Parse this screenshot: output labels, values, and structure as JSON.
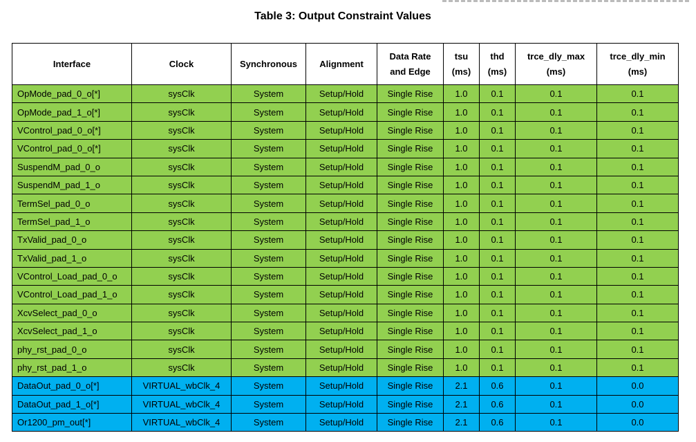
{
  "title": "Table 3: Output Constraint Values",
  "headers": [
    [
      "Interface"
    ],
    [
      "Clock"
    ],
    [
      "Synchronous"
    ],
    [
      "Alignment"
    ],
    [
      "Data Rate",
      "and Edge"
    ],
    [
      "tsu",
      "(ms)"
    ],
    [
      "thd",
      "(ms)"
    ],
    [
      "trce_dly_max",
      "(ms)"
    ],
    [
      "trce_dly_min",
      "(ms)"
    ]
  ],
  "colors": {
    "green_rows": "#92d050",
    "blue_rows": "#00b0f0"
  },
  "rows": [
    {
      "style": "green",
      "cells": [
        "OpMode_pad_0_o[*]",
        "sysClk",
        "System",
        "Setup/Hold",
        "Single Rise",
        "1.0",
        "0.1",
        "0.1",
        "0.1"
      ]
    },
    {
      "style": "green",
      "cells": [
        "OpMode_pad_1_o[*]",
        "sysClk",
        "System",
        "Setup/Hold",
        "Single Rise",
        "1.0",
        "0.1",
        "0.1",
        "0.1"
      ]
    },
    {
      "style": "green",
      "cells": [
        "VControl_pad_0_o[*]",
        "sysClk",
        "System",
        "Setup/Hold",
        "Single Rise",
        "1.0",
        "0.1",
        "0.1",
        "0.1"
      ]
    },
    {
      "style": "green",
      "cells": [
        "VControl_pad_0_o[*]",
        "sysClk",
        "System",
        "Setup/Hold",
        "Single Rise",
        "1.0",
        "0.1",
        "0.1",
        "0.1"
      ]
    },
    {
      "style": "green",
      "cells": [
        "SuspendM_pad_0_o",
        "sysClk",
        "System",
        "Setup/Hold",
        "Single Rise",
        "1.0",
        "0.1",
        "0.1",
        "0.1"
      ]
    },
    {
      "style": "green",
      "cells": [
        "SuspendM_pad_1_o",
        "sysClk",
        "System",
        "Setup/Hold",
        "Single Rise",
        "1.0",
        "0.1",
        "0.1",
        "0.1"
      ]
    },
    {
      "style": "green",
      "cells": [
        "TermSel_pad_0_o",
        "sysClk",
        "System",
        "Setup/Hold",
        "Single Rise",
        "1.0",
        "0.1",
        "0.1",
        "0.1"
      ]
    },
    {
      "style": "green",
      "cells": [
        "TermSel_pad_1_o",
        "sysClk",
        "System",
        "Setup/Hold",
        "Single Rise",
        "1.0",
        "0.1",
        "0.1",
        "0.1"
      ]
    },
    {
      "style": "green",
      "cells": [
        "TxValid_pad_0_o",
        "sysClk",
        "System",
        "Setup/Hold",
        "Single Rise",
        "1.0",
        "0.1",
        "0.1",
        "0.1"
      ]
    },
    {
      "style": "green",
      "cells": [
        "TxValid_pad_1_o",
        "sysClk",
        "System",
        "Setup/Hold",
        "Single Rise",
        "1.0",
        "0.1",
        "0.1",
        "0.1"
      ]
    },
    {
      "style": "green",
      "cells": [
        "VControl_Load_pad_0_o",
        "sysClk",
        "System",
        "Setup/Hold",
        "Single Rise",
        "1.0",
        "0.1",
        "0.1",
        "0.1"
      ]
    },
    {
      "style": "green",
      "cells": [
        "VControl_Load_pad_1_o",
        "sysClk",
        "System",
        "Setup/Hold",
        "Single Rise",
        "1.0",
        "0.1",
        "0.1",
        "0.1"
      ]
    },
    {
      "style": "green",
      "cells": [
        "XcvSelect_pad_0_o",
        "sysClk",
        "System",
        "Setup/Hold",
        "Single Rise",
        "1.0",
        "0.1",
        "0.1",
        "0.1"
      ]
    },
    {
      "style": "green",
      "cells": [
        "XcvSelect_pad_1_o",
        "sysClk",
        "System",
        "Setup/Hold",
        "Single Rise",
        "1.0",
        "0.1",
        "0.1",
        "0.1"
      ]
    },
    {
      "style": "green",
      "cells": [
        "phy_rst_pad_0_o",
        "sysClk",
        "System",
        "Setup/Hold",
        "Single Rise",
        "1.0",
        "0.1",
        "0.1",
        "0.1"
      ]
    },
    {
      "style": "green",
      "cells": [
        "phy_rst_pad_1_o",
        "sysClk",
        "System",
        "Setup/Hold",
        "Single Rise",
        "1.0",
        "0.1",
        "0.1",
        "0.1"
      ]
    },
    {
      "style": "blue",
      "cells": [
        "DataOut_pad_0_o[*]",
        "VIRTUAL_wbClk_4",
        "System",
        "Setup/Hold",
        "Single Rise",
        "2.1",
        "0.6",
        "0.1",
        "0.0"
      ]
    },
    {
      "style": "blue",
      "cells": [
        "DataOut_pad_1_o[*]",
        "VIRTUAL_wbClk_4",
        "System",
        "Setup/Hold",
        "Single Rise",
        "2.1",
        "0.6",
        "0.1",
        "0.0"
      ]
    },
    {
      "style": "blue",
      "cells": [
        "Or1200_pm_out[*]",
        "VIRTUAL_wbClk_4",
        "System",
        "Setup/Hold",
        "Single Rise",
        "2.1",
        "0.6",
        "0.1",
        "0.0"
      ]
    }
  ]
}
